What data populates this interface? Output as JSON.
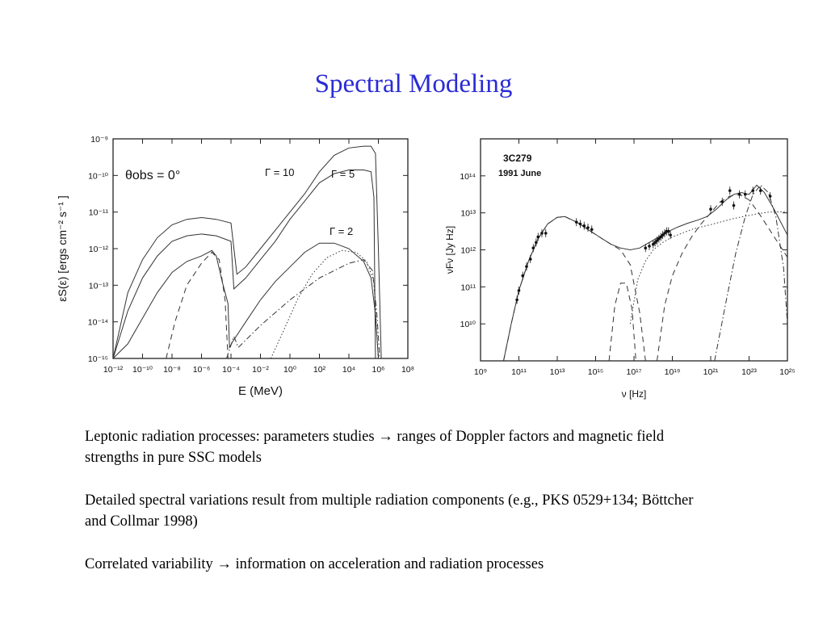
{
  "slide": {
    "title": "Spectral Modeling",
    "paragraphs": [
      "Leptonic radiation processes: parameters studies → ranges of Doppler factors and magnetic field strengths in pure SSC models",
      "Detailed spectral variations result from multiple radiation components (e.g., PKS 0529+134; Böttcher and Collmar 1998)",
      "Correlated variability → information on acceleration and radiation processes"
    ]
  },
  "chart_data": [
    {
      "type": "line",
      "xscale": "log",
      "yscale": "log",
      "xlabel": "E (MeV)",
      "ylabel": "εS(ε) [ergs cm⁻² s⁻¹ ]",
      "xlim": [
        1e-12,
        100000000.0
      ],
      "ylim": [
        1e-15,
        1e-09
      ],
      "xticks": [
        "10⁻¹²",
        "10⁻¹⁰",
        "10⁻⁸",
        "10⁻⁶",
        "10⁻⁴",
        "10⁻²",
        "10⁰",
        "10²",
        "10⁴",
        "10⁶",
        "10⁸"
      ],
      "yticks": [
        "10⁻¹⁵",
        "10⁻¹⁴",
        "10⁻¹³",
        "10⁻¹²",
        "10⁻¹¹",
        "10⁻¹⁰",
        "10⁻⁹"
      ],
      "annotations": [
        "θobs = 0°",
        "Γ = 10",
        "Γ = 5",
        "Γ = 2"
      ],
      "series": [
        {
          "style": "solid",
          "x": [
            -12,
            -11,
            -10,
            -9,
            -8,
            -7,
            -6,
            -5,
            -4,
            -3.6,
            -3,
            -2,
            -1,
            0,
            1,
            2,
            3,
            4,
            5,
            5.5,
            5.8,
            6,
            6.2
          ],
          "y": [
            -15,
            -13.2,
            -12.3,
            -11.7,
            -11.35,
            -11.2,
            -11.15,
            -11.2,
            -11.3,
            -12.7,
            -12.5,
            -12,
            -11.5,
            -11,
            -10.5,
            -9.9,
            -9.45,
            -9.25,
            -9.2,
            -9.2,
            -9.4,
            -12,
            -15
          ]
        },
        {
          "style": "solid",
          "x": [
            -12,
            -11,
            -10,
            -9,
            -8,
            -7,
            -6,
            -5,
            -4,
            -3.8,
            -3,
            -2,
            -1,
            0,
            1,
            2,
            3,
            4,
            5,
            5.5,
            5.7,
            5.8
          ],
          "y": [
            -15,
            -13.7,
            -12.8,
            -12.2,
            -11.8,
            -11.65,
            -11.6,
            -11.65,
            -11.8,
            -13.1,
            -12.8,
            -12.3,
            -11.8,
            -11.2,
            -10.7,
            -10.2,
            -9.95,
            -9.85,
            -9.85,
            -9.9,
            -10.6,
            -15
          ]
        },
        {
          "style": "solid",
          "x": [
            -12,
            -11,
            -10,
            -9,
            -8,
            -7,
            -6,
            -5.3,
            -5,
            -4.6,
            -4.2,
            -4.1,
            -3.9,
            -3,
            -2,
            -1,
            0,
            1,
            2,
            3,
            4,
            5,
            5.5,
            5.8,
            6
          ],
          "y": [
            -15,
            -14.6,
            -13.9,
            -13.2,
            -12.65,
            -12.35,
            -12.2,
            -12.05,
            -12.2,
            -12.9,
            -13.5,
            -14.7,
            -14.55,
            -14,
            -13.4,
            -12.9,
            -12.5,
            -12.1,
            -11.85,
            -11.85,
            -12,
            -12.35,
            -12.8,
            -13.8,
            -15
          ]
        },
        {
          "style": "dashed",
          "x": [
            -8.4,
            -7.8,
            -7,
            -6,
            -5.3,
            -4.8,
            -4.4,
            -4.2
          ],
          "y": [
            -15,
            -14,
            -13,
            -12.4,
            -12.1,
            -12.3,
            -13.4,
            -15
          ]
        },
        {
          "style": "dotted",
          "x": [
            -1.3,
            -0.5,
            0.5,
            1.5,
            2.5,
            3.5,
            4.5,
            5.2,
            5.7,
            6
          ],
          "y": [
            -15,
            -14.3,
            -13.4,
            -12.7,
            -12.25,
            -12.05,
            -12.1,
            -12.35,
            -12.9,
            -15
          ]
        },
        {
          "style": "dashdot",
          "x": [
            -4.3,
            -3.8,
            -3.5,
            -2,
            0,
            2,
            4,
            5,
            5.6,
            5.9,
            6.1
          ],
          "y": [
            -15,
            -14.4,
            -14.7,
            -14.1,
            -13.4,
            -12.8,
            -12.4,
            -12.3,
            -12.6,
            -13.8,
            -15
          ]
        }
      ]
    },
    {
      "type": "line",
      "xscale": "log",
      "yscale": "log",
      "title": "3C279",
      "subtitle": "1991 June",
      "xlabel": "ν [Hz]",
      "ylabel": "νFν [Jy Hz]",
      "xlim": [
        1000000000.0,
        1e+25
      ],
      "ylim": [
        1000000000.0,
        1000000000000000.0
      ],
      "xticks": [
        "10⁹",
        "10¹¹",
        "10¹³",
        "10¹⁵",
        "10¹⁷",
        "10¹⁹",
        "10²¹",
        "10²³",
        "10²⁵"
      ],
      "yticks": [
        "10¹⁰",
        "10¹¹",
        "10¹²",
        "10¹³",
        "10¹⁴"
      ],
      "series": [
        {
          "style": "solid",
          "x": [
            10.2,
            10.6,
            11,
            11.5,
            12,
            12.5,
            13,
            13.4,
            14,
            14.6,
            15.2,
            15.8,
            16.3,
            16.8,
            17.3,
            17.8,
            18.3,
            18.8,
            19.3,
            19.8,
            20.3,
            20.8,
            21.3,
            21.8,
            22.2,
            22.6,
            23,
            23.4,
            23.8,
            24.3,
            25
          ],
          "y": [
            9,
            10,
            10.9,
            11.7,
            12.3,
            12.7,
            12.88,
            12.9,
            12.75,
            12.55,
            12.35,
            12.15,
            12.05,
            12.0,
            12.05,
            12.2,
            12.35,
            12.5,
            12.62,
            12.72,
            12.8,
            12.9,
            13.1,
            13.35,
            13.5,
            13.55,
            13.5,
            13.75,
            13.55,
            13.1,
            12.4
          ]
        },
        {
          "style": "dashed",
          "x": [
            10.2,
            10.6,
            11,
            11.5,
            12,
            12.5,
            13,
            13.4,
            14,
            14.6,
            15.2,
            15.8,
            16.3,
            16.8,
            17.3,
            17.6
          ],
          "y": [
            9,
            10,
            10.9,
            11.7,
            12.3,
            12.7,
            12.88,
            12.9,
            12.75,
            12.55,
            12.35,
            12.15,
            12.0,
            11.6,
            10.3,
            9
          ]
        },
        {
          "style": "dashed",
          "x": [
            15.7,
            16,
            16.3,
            16.6,
            16.9,
            17.1
          ],
          "y": [
            9,
            10.5,
            11.1,
            11.1,
            10.4,
            9
          ]
        },
        {
          "style": "dashed",
          "x": [
            18.2,
            18.6,
            19,
            19.5,
            20,
            20.5,
            21,
            21.5,
            22,
            22.5,
            23,
            23.5,
            24,
            24.5,
            25
          ],
          "y": [
            9,
            10.5,
            11.3,
            11.9,
            12.35,
            12.7,
            13.0,
            13.3,
            13.45,
            13.5,
            13.35,
            13.0,
            12.6,
            12.2,
            11.8
          ]
        },
        {
          "style": "dotted",
          "x": [
            16.8,
            17.2,
            17.6,
            18,
            18.5,
            19,
            19.5,
            20,
            20.5,
            21,
            21.5,
            22,
            22.5,
            23,
            23.5,
            24,
            24.5,
            25
          ],
          "y": [
            10,
            11.2,
            11.7,
            12.0,
            12.2,
            12.35,
            12.45,
            12.55,
            12.62,
            12.68,
            12.75,
            12.82,
            12.88,
            12.93,
            12.98,
            13.02,
            13.03,
            13.02
          ]
        },
        {
          "style": "dashdot",
          "x": [
            21.2,
            21.8,
            22.3,
            22.8,
            23.2,
            23.6,
            24,
            24.4,
            24.8,
            25
          ],
          "y": [
            9,
            10.6,
            11.9,
            12.9,
            13.5,
            13.75,
            13.55,
            12.9,
            11.5,
            10
          ]
        }
      ],
      "points": [
        [
          10.9,
          10.65
        ],
        [
          11.0,
          10.9
        ],
        [
          11.2,
          11.3
        ],
        [
          11.4,
          11.55
        ],
        [
          11.6,
          11.75
        ],
        [
          11.75,
          12.05
        ],
        [
          11.9,
          12.2
        ],
        [
          12.0,
          12.35
        ],
        [
          12.2,
          12.45
        ],
        [
          12.4,
          12.45
        ],
        [
          14.0,
          12.75
        ],
        [
          14.2,
          12.7
        ],
        [
          14.4,
          12.65
        ],
        [
          14.6,
          12.6
        ],
        [
          14.8,
          12.55
        ],
        [
          17.6,
          12.05
        ],
        [
          17.8,
          12.1
        ],
        [
          18.0,
          12.15
        ],
        [
          18.1,
          12.2
        ],
        [
          18.2,
          12.25
        ],
        [
          18.3,
          12.3
        ],
        [
          18.4,
          12.35
        ],
        [
          18.5,
          12.4
        ],
        [
          18.6,
          12.45
        ],
        [
          18.7,
          12.5
        ],
        [
          18.8,
          12.5
        ],
        [
          18.9,
          12.4
        ],
        [
          21.0,
          13.1
        ],
        [
          21.6,
          13.3
        ],
        [
          22.0,
          13.6
        ],
        [
          22.2,
          13.2
        ],
        [
          22.5,
          13.5
        ],
        [
          22.8,
          13.5
        ],
        [
          23.2,
          13.6
        ],
        [
          23.6,
          13.6
        ],
        [
          24.1,
          13.45
        ]
      ]
    }
  ]
}
